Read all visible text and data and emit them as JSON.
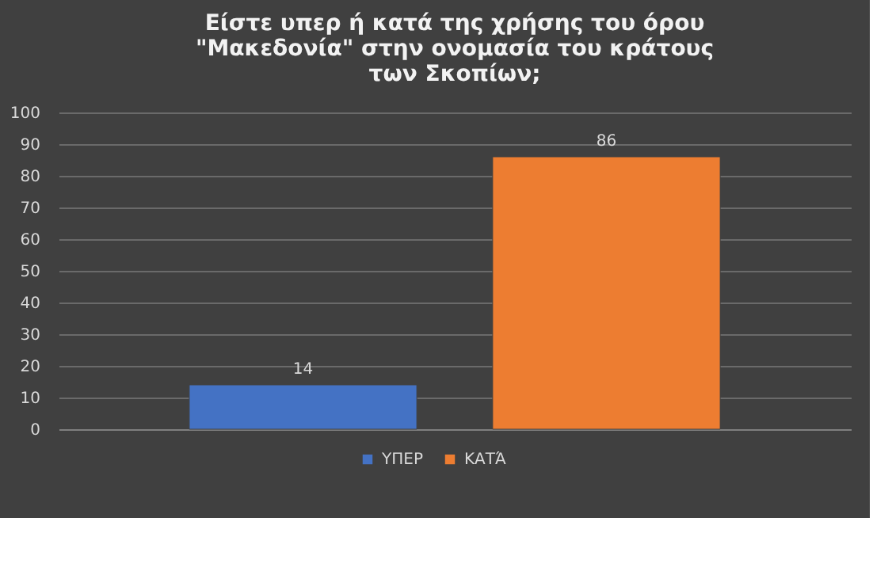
{
  "chart_data": {
    "type": "bar",
    "title": "Είστε υπερ ή κατά της χρήσης του όρου\n\"Μακεδονία\" στην ονομασία του κράτους\nτων Σκοπίων;",
    "categories": [
      null
    ],
    "series": [
      {
        "name": "ΥΠΕΡ",
        "color": "#4472c4",
        "values": [
          14
        ]
      },
      {
        "name": "ΚΑΤΆ",
        "color": "#ed7d31",
        "values": [
          86
        ]
      }
    ],
    "ylim": [
      0,
      100
    ],
    "yticks": [
      0,
      10,
      20,
      30,
      40,
      50,
      60,
      70,
      80,
      90,
      100
    ],
    "grid": "y",
    "legend": "bottom",
    "data_labels": true
  }
}
